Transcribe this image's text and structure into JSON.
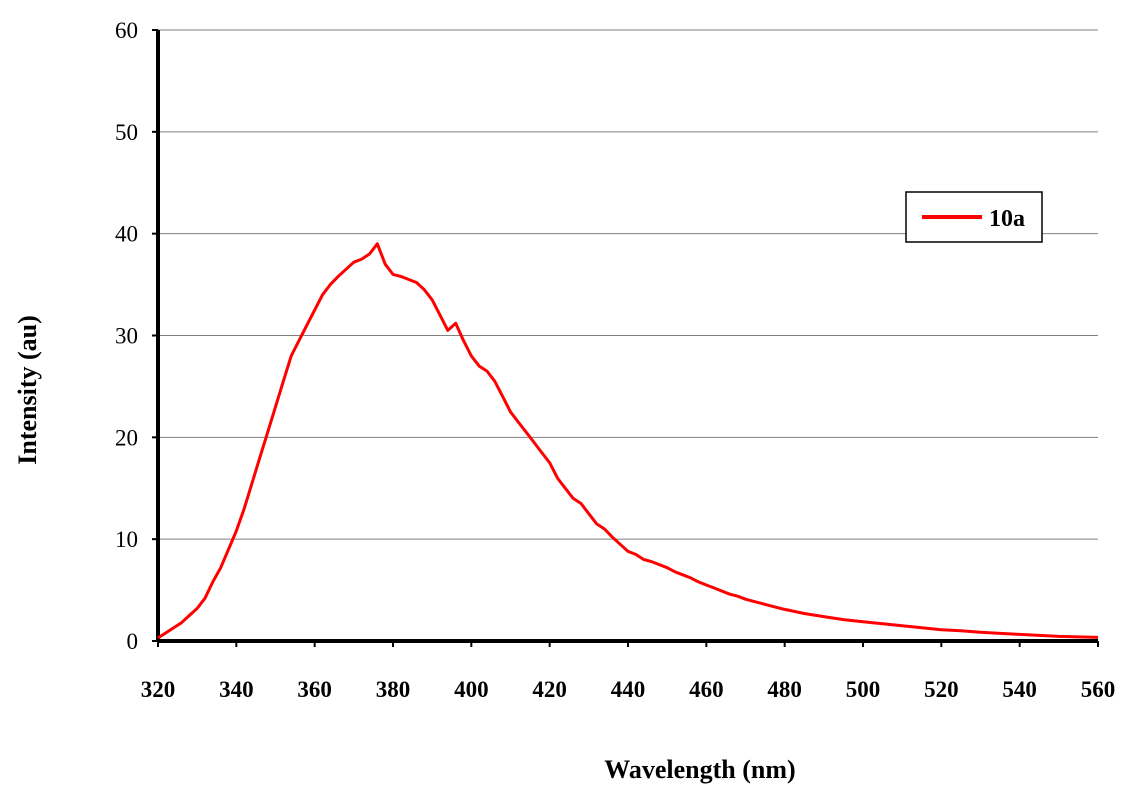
{
  "chart_data": {
    "type": "line",
    "title": "",
    "xlabel": "Wavelength (nm)",
    "ylabel": "Intensity  (au)",
    "xlim": [
      320,
      560
    ],
    "ylim": [
      0,
      60
    ],
    "xticks": [
      "320",
      "340",
      "360",
      "380",
      "400",
      "420",
      "440",
      "460",
      "480",
      "500",
      "520",
      "540",
      "560"
    ],
    "yticks": [
      "0",
      "10",
      "20",
      "30",
      "40",
      "50",
      "60"
    ],
    "grid": "horizontal",
    "legend_position": "right",
    "series": [
      {
        "name": "10a",
        "color": "#ff0000",
        "x": [
          320,
          322,
          324,
          326,
          328,
          330,
          332,
          334,
          336,
          338,
          340,
          342,
          344,
          346,
          348,
          350,
          352,
          354,
          356,
          358,
          360,
          362,
          364,
          366,
          368,
          370,
          372,
          374,
          376,
          378,
          380,
          382,
          384,
          386,
          388,
          390,
          392,
          394,
          396,
          398,
          400,
          402,
          404,
          406,
          408,
          410,
          412,
          414,
          416,
          418,
          420,
          422,
          424,
          426,
          428,
          430,
          432,
          434,
          436,
          438,
          440,
          442,
          444,
          446,
          448,
          450,
          452,
          454,
          456,
          458,
          460,
          462,
          464,
          466,
          468,
          470,
          472,
          474,
          476,
          478,
          480,
          485,
          490,
          495,
          500,
          505,
          510,
          515,
          520,
          525,
          530,
          535,
          540,
          545,
          550,
          555,
          560
        ],
        "y": [
          0.3,
          0.8,
          1.3,
          1.8,
          2.5,
          3.2,
          4.2,
          5.8,
          7.2,
          9.0,
          10.8,
          13.0,
          15.5,
          18.0,
          20.5,
          23.0,
          25.5,
          28.0,
          29.5,
          31.0,
          32.5,
          34.0,
          35.0,
          35.8,
          36.5,
          37.2,
          37.5,
          38.0,
          39.0,
          37.0,
          36.0,
          35.8,
          35.5,
          35.2,
          34.5,
          33.5,
          32.0,
          30.5,
          31.2,
          29.5,
          28.0,
          27.0,
          26.5,
          25.5,
          24.0,
          22.5,
          21.5,
          20.5,
          19.5,
          18.5,
          17.5,
          16.0,
          15.0,
          14.0,
          13.5,
          12.5,
          11.5,
          11.0,
          10.2,
          9.5,
          8.8,
          8.5,
          8.0,
          7.8,
          7.5,
          7.2,
          6.8,
          6.5,
          6.2,
          5.8,
          5.5,
          5.2,
          4.9,
          4.6,
          4.4,
          4.1,
          3.9,
          3.7,
          3.5,
          3.3,
          3.1,
          2.7,
          2.4,
          2.1,
          1.9,
          1.7,
          1.5,
          1.3,
          1.1,
          1.0,
          0.85,
          0.75,
          0.65,
          0.55,
          0.45,
          0.4,
          0.35
        ]
      }
    ]
  }
}
